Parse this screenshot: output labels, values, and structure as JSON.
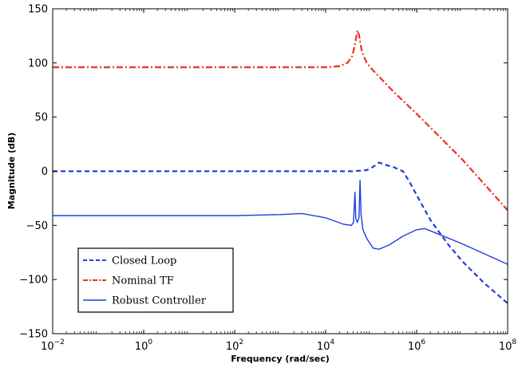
{
  "chart_data": {
    "type": "line",
    "title": "",
    "xlabel": "Frequency  (rad/sec)",
    "ylabel": "Magnitude (dB)",
    "xscale": "log",
    "xlim": [
      0.01,
      100000000
    ],
    "ylim": [
      -150,
      150
    ],
    "x_ticks": [
      {
        "base": "10",
        "exp": "−2",
        "value": 0.01
      },
      {
        "base": "10",
        "exp": "0",
        "value": 1
      },
      {
        "base": "10",
        "exp": "2",
        "value": 100
      },
      {
        "base": "10",
        "exp": "4",
        "value": 10000
      },
      {
        "base": "10",
        "exp": "6",
        "value": 1000000
      },
      {
        "base": "10",
        "exp": "8",
        "value": 100000000
      }
    ],
    "y_ticks": [
      {
        "label": "150",
        "value": 150
      },
      {
        "label": "100",
        "value": 100
      },
      {
        "label": "50",
        "value": 50
      },
      {
        "label": "0",
        "value": 0
      },
      {
        "label": "−50",
        "value": -50
      },
      {
        "label": "−100",
        "value": -100
      },
      {
        "label": "−150",
        "value": -150
      }
    ],
    "grid": false,
    "legend_position": "bottom-left",
    "series": [
      {
        "name": "Closed Loop",
        "color": "#1f3fdc",
        "style": "dashed",
        "points": [
          [
            0.01,
            0
          ],
          [
            10,
            0
          ],
          [
            1000,
            0
          ],
          [
            10000,
            0
          ],
          [
            40000,
            0
          ],
          [
            80000,
            1
          ],
          [
            110000,
            4
          ],
          [
            150000,
            8
          ],
          [
            200000,
            6
          ],
          [
            300000,
            4
          ],
          [
            500000,
            0
          ],
          [
            700000,
            -10
          ],
          [
            1000000,
            -22
          ],
          [
            2000000,
            -45
          ],
          [
            5000000,
            -68
          ],
          [
            10000000,
            -83
          ],
          [
            30000000,
            -103
          ],
          [
            100000000,
            -122
          ]
        ]
      },
      {
        "name": "Nominal TF",
        "color": "#e8361e",
        "style": "dashdot",
        "points": [
          [
            0.01,
            96
          ],
          [
            10,
            96
          ],
          [
            1000,
            96
          ],
          [
            10000,
            96
          ],
          [
            20000,
            97
          ],
          [
            30000,
            100
          ],
          [
            38000,
            106
          ],
          [
            42000,
            113
          ],
          [
            46000,
            122
          ],
          [
            50000,
            130
          ],
          [
            54000,
            126
          ],
          [
            58000,
            118
          ],
          [
            63000,
            110
          ],
          [
            80000,
            100
          ],
          [
            100000,
            95
          ],
          [
            300000,
            74
          ],
          [
            1000000,
            53
          ],
          [
            10000000,
            11
          ],
          [
            100000000,
            -36
          ]
        ]
      },
      {
        "name": "Robust Controller",
        "color": "#1f3fdc",
        "style": "solid",
        "points": [
          [
            0.01,
            -41
          ],
          [
            1,
            -41
          ],
          [
            100,
            -41
          ],
          [
            1000,
            -40
          ],
          [
            3000,
            -39
          ],
          [
            10000,
            -43
          ],
          [
            25000,
            -49
          ],
          [
            37000,
            -50
          ],
          [
            41000,
            -47
          ],
          [
            44000,
            -19
          ],
          [
            46000,
            -44
          ],
          [
            50000,
            -47
          ],
          [
            54000,
            -43
          ],
          [
            57000,
            -8
          ],
          [
            60000,
            -40
          ],
          [
            66000,
            -54
          ],
          [
            80000,
            -62
          ],
          [
            110000,
            -71
          ],
          [
            150000,
            -72
          ],
          [
            250000,
            -68
          ],
          [
            500000,
            -60
          ],
          [
            1000000,
            -54
          ],
          [
            1500000,
            -53
          ],
          [
            3000000,
            -58
          ],
          [
            10000000,
            -67
          ],
          [
            100000000,
            -86
          ]
        ]
      }
    ]
  }
}
